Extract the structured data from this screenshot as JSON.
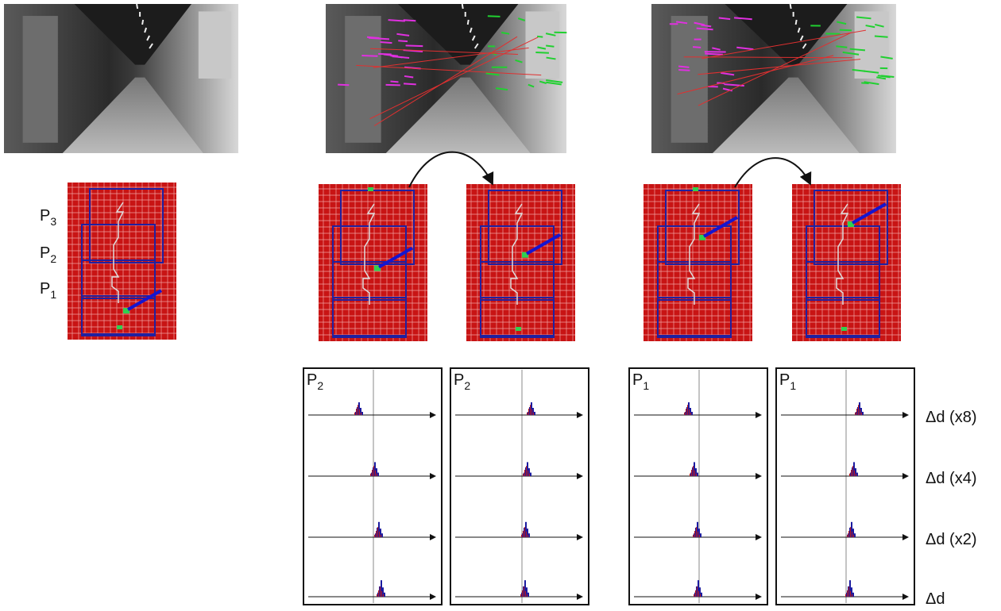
{
  "left_labels": [
    {
      "base": "P",
      "sub": "3"
    },
    {
      "base": "P",
      "sub": "2"
    },
    {
      "base": "P",
      "sub": "1"
    }
  ],
  "panel_labels": [
    {
      "base": "P",
      "sub": "2"
    },
    {
      "base": "P",
      "sub": "2"
    },
    {
      "base": "P",
      "sub": "1"
    },
    {
      "base": "P",
      "sub": "1"
    }
  ],
  "axis_labels": [
    "Δd (x8)",
    "Δd (x4)",
    "Δd (x2)",
    "Δd"
  ]
}
